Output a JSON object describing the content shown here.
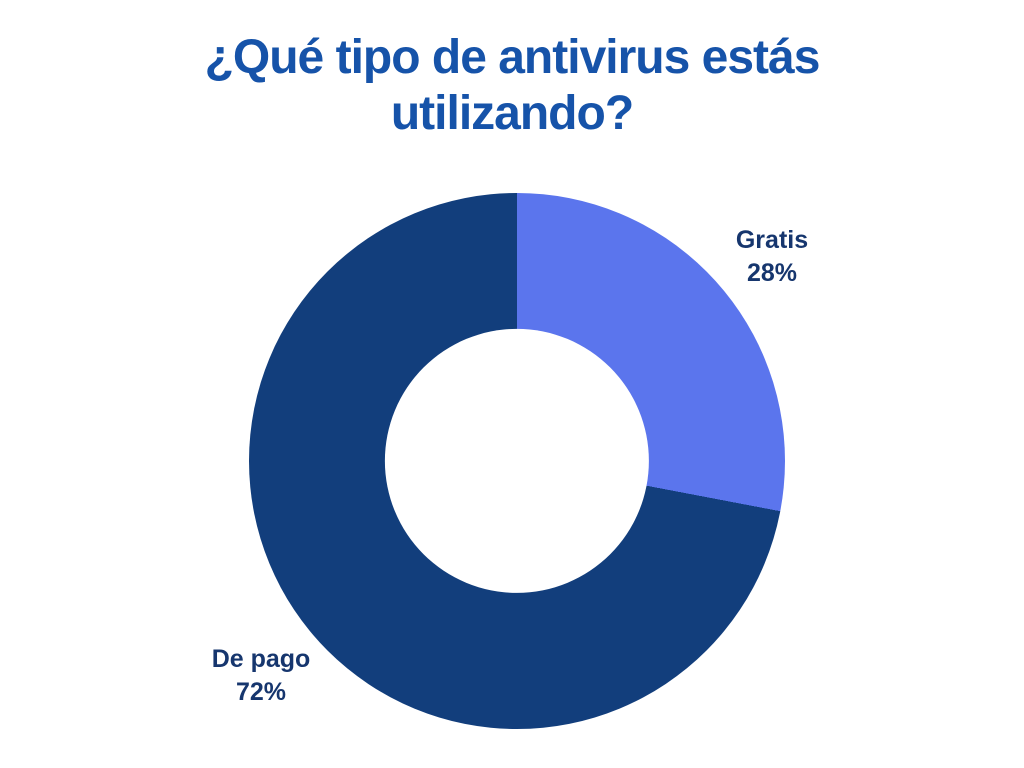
{
  "page": {
    "background": "#ffffff"
  },
  "chart_data": {
    "type": "pie",
    "subtype": "donut",
    "title": "¿Qué tipo de antivirus estás utilizando?",
    "title_lines": [
      "¿Qué tipo de antivirus estás",
      "utilizando?"
    ],
    "categories": [
      "Gratis",
      "De pago"
    ],
    "values": [
      28,
      72
    ],
    "value_labels": [
      "28%",
      "72%"
    ],
    "series_colors": [
      "#5b75ed",
      "#123e7c"
    ],
    "start_angle_deg": 0,
    "direction": "clockwise",
    "inner_radius_ratio": 0.493,
    "legend": "none",
    "grid": "none",
    "title_color": "#1653a9",
    "label_color": "#16366e",
    "background": "#ffffff"
  }
}
